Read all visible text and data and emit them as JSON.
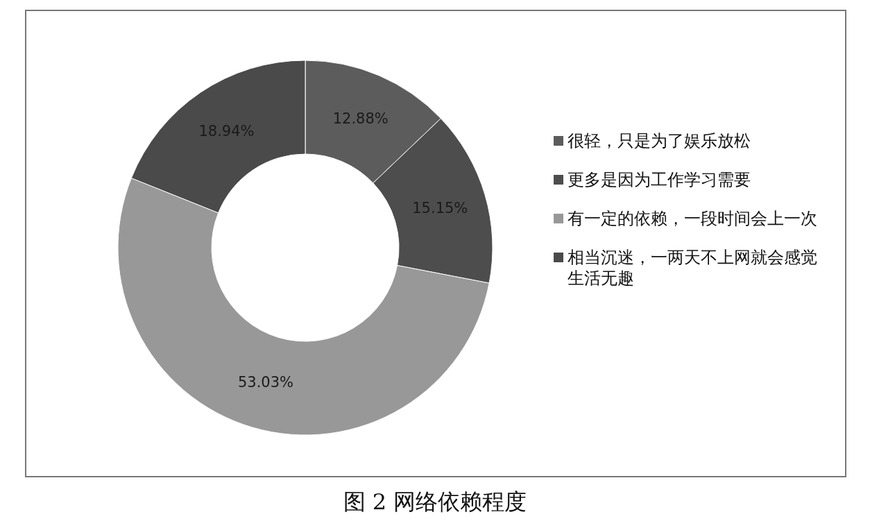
{
  "chart_data": {
    "type": "donut",
    "title": "图 2 网络依赖程度",
    "categories": [
      "很轻，只是为了娱乐放松",
      "更多是因为工作学习需要",
      "有一定的依赖，一段时间会上一次",
      "相当沉迷，一两天不上网就会感觉生活无趣"
    ],
    "values": [
      12.88,
      15.15,
      53.03,
      18.94
    ],
    "value_labels": [
      "12.88%",
      "15.15%",
      "53.03%",
      "18.94%"
    ],
    "colors": [
      "#5c5c5c",
      "#4d4d4d",
      "#989898",
      "#4a4a4a"
    ],
    "legend": "right"
  }
}
